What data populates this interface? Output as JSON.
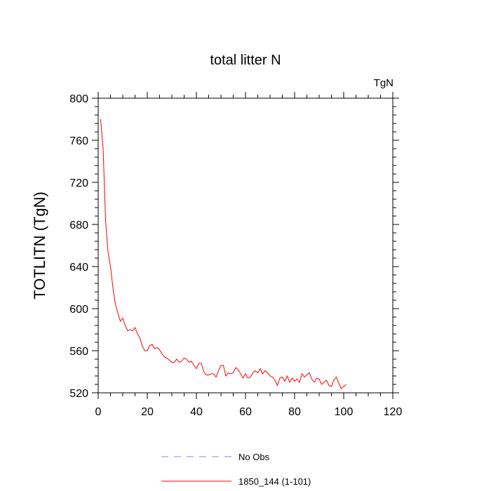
{
  "chart_data": {
    "type": "line",
    "title": "total litter N",
    "units": "TgN",
    "xlabel": "",
    "ylabel": "TOTLITN  (TgN)",
    "xlim": [
      0,
      120
    ],
    "ylim": [
      520,
      800
    ],
    "xticks": [
      0,
      20,
      40,
      60,
      80,
      100,
      120
    ],
    "yticks": [
      520,
      560,
      600,
      640,
      680,
      720,
      760,
      800
    ],
    "grid": false,
    "legend_position": "bottom",
    "series": [
      {
        "name": "1850_144 (1-101)",
        "color": "#ff0000",
        "dash": "solid",
        "x": [
          1,
          2,
          3,
          4,
          5,
          6,
          7,
          8,
          9,
          10,
          11,
          12,
          13,
          14,
          15,
          16,
          17,
          18,
          19,
          20,
          21,
          22,
          23,
          24,
          25,
          26,
          27,
          28,
          29,
          30,
          31,
          32,
          33,
          34,
          35,
          36,
          37,
          38,
          39,
          40,
          41,
          42,
          43,
          44,
          45,
          46,
          47,
          48,
          49,
          50,
          51,
          52,
          53,
          54,
          55,
          56,
          57,
          58,
          59,
          60,
          61,
          62,
          63,
          64,
          65,
          66,
          67,
          68,
          69,
          70,
          71,
          72,
          73,
          74,
          75,
          76,
          77,
          78,
          79,
          80,
          81,
          82,
          83,
          84,
          85,
          86,
          87,
          88,
          89,
          90,
          91,
          92,
          93,
          94,
          95,
          96,
          97,
          98,
          99,
          100,
          101
        ],
        "y": [
          780,
          752,
          684,
          654,
          640,
          620,
          604,
          596,
          588,
          591,
          584,
          579,
          580,
          579,
          582,
          576,
          572,
          564,
          560,
          560,
          565,
          566,
          562,
          563,
          561,
          557,
          554,
          553,
          551,
          549,
          549,
          552,
          549,
          550,
          553,
          552,
          549,
          550,
          546,
          543,
          548,
          548,
          540,
          537,
          537,
          538,
          538,
          535,
          541,
          546,
          546,
          536,
          539,
          538,
          539,
          544,
          542,
          538,
          534,
          538,
          534,
          535,
          539,
          541,
          539,
          543,
          538,
          541,
          539,
          536,
          535,
          532,
          527,
          534,
          535,
          531,
          536,
          530,
          534,
          531,
          533,
          530,
          538,
          535,
          537,
          539,
          533,
          530,
          534,
          533,
          528,
          530,
          532,
          527,
          526,
          532,
          535,
          529,
          524,
          526,
          528
        ]
      },
      {
        "name": "No Obs",
        "color": "#8080ff",
        "dash": "dashed",
        "x": [],
        "y": []
      }
    ]
  }
}
